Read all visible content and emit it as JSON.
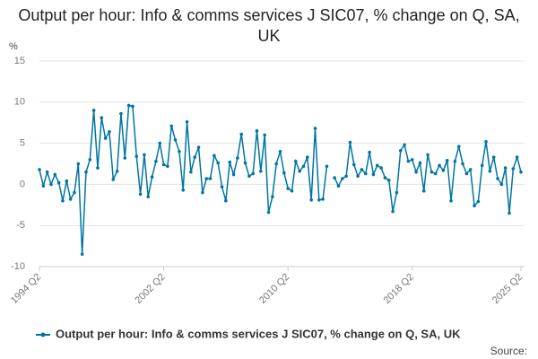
{
  "chart_data": {
    "type": "line",
    "title": "Output per hour: Info & comms services J SIC07, % change on Q, SA, UK",
    "y_label": "%",
    "source": "Source:",
    "categories": [
      "1994 Q2",
      null,
      null,
      null,
      null,
      null,
      null,
      null,
      null,
      null,
      null,
      null,
      null,
      null,
      null,
      null,
      null,
      null,
      null,
      null,
      null,
      null,
      null,
      null,
      null,
      null,
      null,
      null,
      null,
      null,
      null,
      null,
      "2002 Q2",
      null,
      null,
      null,
      null,
      null,
      null,
      null,
      null,
      null,
      null,
      null,
      null,
      null,
      null,
      null,
      null,
      null,
      null,
      null,
      null,
      null,
      null,
      null,
      null,
      null,
      null,
      null,
      null,
      null,
      null,
      null,
      "2010 Q2",
      null,
      null,
      null,
      null,
      null,
      null,
      null,
      null,
      null,
      null,
      null,
      null,
      null,
      null,
      null,
      null,
      null,
      null,
      null,
      null,
      null,
      null,
      null,
      null,
      null,
      null,
      null,
      null,
      null,
      null,
      null,
      "2018 Q2",
      null,
      null,
      null,
      null,
      null,
      null,
      null,
      null,
      null,
      null,
      null,
      null,
      null,
      null,
      null,
      null,
      null,
      null,
      null,
      null,
      null,
      null,
      null,
      null,
      null,
      null,
      null,
      "2025 Q2"
    ],
    "series": [
      {
        "name": "Output per hour: Info & comms services J SIC07, % change on Q, SA, UK",
        "color": "#0075a3",
        "values": [
          1.8,
          -0.2,
          1.5,
          0.0,
          1.2,
          0.2,
          -2.0,
          0.4,
          -1.8,
          -1.0,
          2.5,
          -8.5,
          1.5,
          3.0,
          9.0,
          2.0,
          8.1,
          5.6,
          6.4,
          0.6,
          1.6,
          8.6,
          3.2,
          9.6,
          9.5,
          3.4,
          -1.2,
          3.6,
          -1.5,
          0.9,
          2.8,
          5.0,
          2.4,
          2.2,
          7.1,
          5.4,
          4.0,
          -0.7,
          7.6,
          1.5,
          3.3,
          4.5,
          -1.0,
          0.7,
          0.7,
          3.5,
          2.6,
          -0.3,
          -2.0,
          2.7,
          1.2,
          3.2,
          6.1,
          2.6,
          1.0,
          1.3,
          6.5,
          1.6,
          6.0,
          -3.4,
          -1.5,
          2.5,
          4.0,
          1.4,
          -0.5,
          -0.8,
          2.8,
          1.6,
          2.2,
          3.3,
          -1.9,
          6.8,
          -1.9,
          -1.8,
          2.2,
          null,
          0.8,
          -0.2,
          0.7,
          1.0,
          5.1,
          2.4,
          1.0,
          1.8,
          1.3,
          3.9,
          1.2,
          2.3,
          2.0,
          0.8,
          0.5,
          -3.3,
          -1.0,
          4.1,
          4.8,
          2.8,
          3.0,
          1.5,
          2.6,
          -0.8,
          3.6,
          1.5,
          1.3,
          2.3,
          1.7,
          2.9,
          -2.0,
          2.8,
          4.6,
          2.5,
          1.3,
          1.8,
          -2.6,
          -2.1,
          2.3,
          5.2,
          1.6,
          3.3,
          0.7,
          0.0,
          2.0,
          -3.5,
          1.9,
          3.3,
          1.5
        ]
      }
    ],
    "ylim": [
      -10,
      15
    ],
    "yticks": [
      -10,
      -5,
      0,
      5,
      10,
      15
    ],
    "grid": true,
    "legend": "bottom"
  }
}
